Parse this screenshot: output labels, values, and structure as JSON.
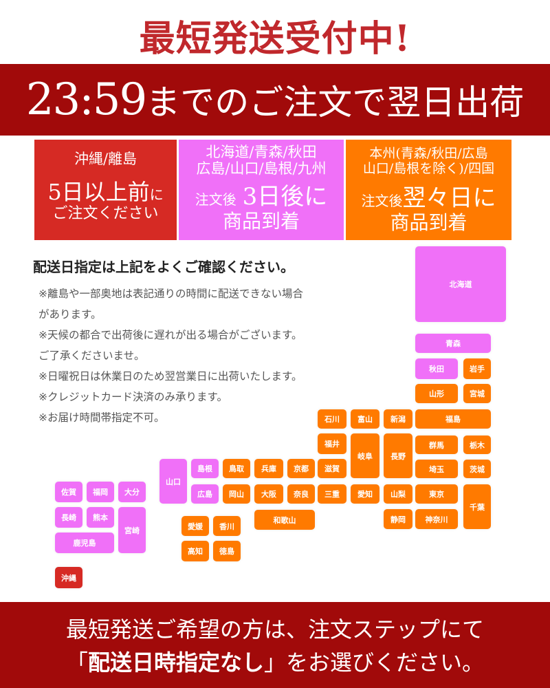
{
  "header": {
    "title": "最短発送受付中!",
    "cutoff_time": "23:59",
    "cutoff_text": "までのご注文で翌日出荷"
  },
  "colors": {
    "red": "#d62a24",
    "pink": "#f070f8",
    "orange": "#ff7a00",
    "band": "#a10a0a"
  },
  "zones": [
    {
      "key": "red",
      "regions": "沖縄/離島",
      "line1": "5日以上前",
      "line1_suffix": "に",
      "line2": "ご注文ください"
    },
    {
      "key": "pink",
      "regions1": "北海道/青森/秋田",
      "regions2": "広島/山口/島根/九州",
      "prefix": "注文後",
      "line1": "3日後に",
      "line2": "商品到着"
    },
    {
      "key": "orange",
      "regions1": "本州(青森/秋田/広島",
      "regions2": "山口/島根を除く)/四国",
      "prefix": "注文後",
      "line1": "翌々日に",
      "line2": "商品到着"
    }
  ],
  "notes": {
    "title": "配送日指定は上記をよくご確認ください。",
    "lines": [
      "※離島や一部奥地は表記通りの時間に配送できない場合",
      "があります。",
      "※天候の都合で出荷後に遅れが出る場合がございます。",
      "ご了承くださいませ。",
      "※日曜祝日は休業日のため翌営業日に出荷いたします。",
      "※クレジットカード決済のみ承ります。",
      "※お届け時間帯指定不可。"
    ]
  },
  "map": {
    "prefectures": [
      {
        "name": "北海道",
        "zone": "pink"
      },
      {
        "name": "青森",
        "zone": "pink"
      },
      {
        "name": "秋田",
        "zone": "pink"
      },
      {
        "name": "岩手",
        "zone": "orange"
      },
      {
        "name": "山形",
        "zone": "orange"
      },
      {
        "name": "宮城",
        "zone": "orange"
      },
      {
        "name": "石川",
        "zone": "orange"
      },
      {
        "name": "富山",
        "zone": "orange"
      },
      {
        "name": "新潟",
        "zone": "orange"
      },
      {
        "name": "福島",
        "zone": "orange"
      },
      {
        "name": "福井",
        "zone": "orange"
      },
      {
        "name": "岐阜",
        "zone": "orange"
      },
      {
        "name": "長野",
        "zone": "orange"
      },
      {
        "name": "群馬",
        "zone": "orange"
      },
      {
        "name": "栃木",
        "zone": "orange"
      },
      {
        "name": "滋賀",
        "zone": "orange"
      },
      {
        "name": "埼玉",
        "zone": "orange"
      },
      {
        "name": "茨城",
        "zone": "orange"
      },
      {
        "name": "三重",
        "zone": "orange"
      },
      {
        "name": "愛知",
        "zone": "orange"
      },
      {
        "name": "山梨",
        "zone": "orange"
      },
      {
        "name": "東京",
        "zone": "orange"
      },
      {
        "name": "千葉",
        "zone": "orange"
      },
      {
        "name": "静岡",
        "zone": "orange"
      },
      {
        "name": "神奈川",
        "zone": "orange"
      },
      {
        "name": "山口",
        "zone": "pink"
      },
      {
        "name": "島根",
        "zone": "pink"
      },
      {
        "name": "鳥取",
        "zone": "orange"
      },
      {
        "name": "兵庫",
        "zone": "orange"
      },
      {
        "name": "京都",
        "zone": "orange"
      },
      {
        "name": "広島",
        "zone": "pink"
      },
      {
        "name": "岡山",
        "zone": "orange"
      },
      {
        "name": "大阪",
        "zone": "orange"
      },
      {
        "name": "奈良",
        "zone": "orange"
      },
      {
        "name": "和歌山",
        "zone": "orange"
      },
      {
        "name": "愛媛",
        "zone": "orange"
      },
      {
        "name": "香川",
        "zone": "orange"
      },
      {
        "name": "高知",
        "zone": "orange"
      },
      {
        "name": "徳島",
        "zone": "orange"
      },
      {
        "name": "佐賀",
        "zone": "pink"
      },
      {
        "name": "福岡",
        "zone": "pink"
      },
      {
        "name": "大分",
        "zone": "pink"
      },
      {
        "name": "長崎",
        "zone": "pink"
      },
      {
        "name": "熊本",
        "zone": "pink"
      },
      {
        "name": "宮崎",
        "zone": "pink"
      },
      {
        "name": "鹿児島",
        "zone": "pink"
      },
      {
        "name": "沖縄",
        "zone": "red"
      }
    ]
  },
  "footer": {
    "line1": "最短発送ご希望の方は、注文ステップにて",
    "quote_open": "「",
    "highlight": "配送日時指定なし",
    "quote_close": "」",
    "line2_rest": "をお選びください。"
  }
}
